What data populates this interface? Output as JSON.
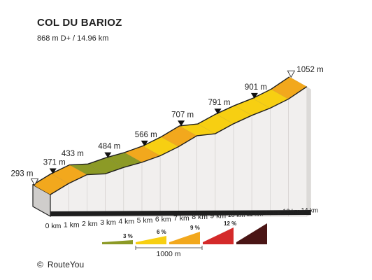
{
  "title": "COL DU BARIOZ",
  "subtitle": "868 m D+ / 14.96 km",
  "credit": {
    "symbol": "©",
    "text": "RouteYou"
  },
  "chart_data": {
    "type": "area",
    "title": "COL DU BARIOZ",
    "subtitle": "868 m D+ / 14.96 km",
    "x_unit": "km",
    "y_unit": "m",
    "points": [
      {
        "km": 0,
        "ele": 293
      },
      {
        "km": 1,
        "ele": 371
      },
      {
        "km": 2,
        "ele": 433
      },
      {
        "km": 3,
        "ele": 439
      },
      {
        "km": 4,
        "ele": 484
      },
      {
        "km": 5,
        "ele": 520
      },
      {
        "km": 6,
        "ele": 566
      },
      {
        "km": 7,
        "ele": 630
      },
      {
        "km": 8,
        "ele": 707
      },
      {
        "km": 9,
        "ele": 721
      },
      {
        "km": 10,
        "ele": 791
      },
      {
        "km": 11,
        "ele": 850
      },
      {
        "km": 12,
        "ele": 901
      },
      {
        "km": 13,
        "ele": 965
      },
      {
        "km": 14,
        "ele": 1052
      }
    ],
    "segment_colors": [
      "#f2a81d",
      "#f2a81d",
      "#8c9a26",
      "#8c9a26",
      "#8c9a26",
      "#f2a81d",
      "#f7cf12",
      "#f2a81d",
      "#f7cf12",
      "#f7cf12",
      "#f7cf12",
      "#f7cf12",
      "#f7cf12",
      "#f2a81d"
    ],
    "altitude_labels": [
      {
        "km": 0,
        "label": "293 m",
        "marker": "start"
      },
      {
        "km": 1,
        "label": "371 m",
        "marker": "mid"
      },
      {
        "km": 2,
        "label": "433 m",
        "marker": "none"
      },
      {
        "km": 4,
        "label": "484 m",
        "marker": "mid"
      },
      {
        "km": 6,
        "label": "566 m",
        "marker": "mid"
      },
      {
        "km": 8,
        "label": "707 m",
        "marker": "mid"
      },
      {
        "km": 10,
        "label": "791 m",
        "marker": "mid"
      },
      {
        "km": 12,
        "label": "901 m",
        "marker": "mid"
      },
      {
        "km": 14,
        "label": "1052 m",
        "marker": "end"
      }
    ],
    "x_tick_labels": [
      "0 km",
      "1 km",
      "2 km",
      "3 km",
      "4 km",
      "5 km",
      "6 km",
      "7 km",
      "8 km",
      "9 km",
      "10 km",
      "11 km",
      "12 km",
      "13 km",
      "14 km"
    ],
    "legend": {
      "items": [
        {
          "label": "3 %",
          "color": "#8c9a26",
          "gradient": 3
        },
        {
          "label": "6 %",
          "color": "#f7cf12",
          "gradient": 6
        },
        {
          "label": "9 %",
          "color": "#f2a81d",
          "gradient": 9
        },
        {
          "label": "12 %",
          "color": "#d42a2a",
          "gradient": 12
        },
        {
          "label": "",
          "color": "#4a1515",
          "gradient": 15
        }
      ],
      "distance_label": "1000 m"
    },
    "colors": {
      "wall": "#f1efee",
      "base": "#1e1e1e",
      "marker": "#111111"
    }
  }
}
